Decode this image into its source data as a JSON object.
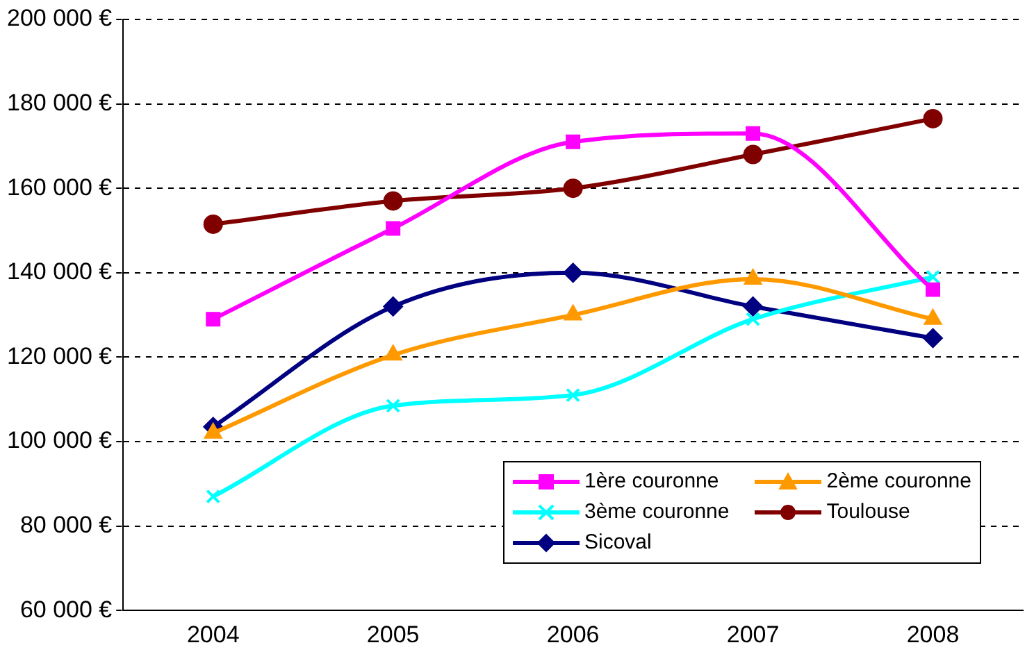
{
  "chart_data": {
    "type": "line",
    "categories": [
      "2004",
      "2005",
      "2006",
      "2007",
      "2008"
    ],
    "series": [
      {
        "name": "1ère couronne",
        "color": "#ff00ff",
        "marker": "square",
        "values": [
          129000,
          150500,
          171000,
          173000,
          136000
        ]
      },
      {
        "name": "2ème couronne",
        "color": "#ff9900",
        "marker": "triangle",
        "values": [
          102000,
          120500,
          130000,
          138500,
          129000
        ]
      },
      {
        "name": "3ème couronne",
        "color": "#00ffff",
        "marker": "cross",
        "values": [
          87000,
          108500,
          111000,
          129000,
          139000
        ]
      },
      {
        "name": "Toulouse",
        "color": "#800000",
        "marker": "circle",
        "values": [
          151500,
          157000,
          160000,
          168000,
          176500
        ]
      },
      {
        "name": "Sicoval",
        "color": "#000080",
        "marker": "diamond",
        "values": [
          103500,
          132000,
          140000,
          132000,
          124500
        ]
      }
    ],
    "ylim": [
      60000,
      200000
    ],
    "yticks": [
      {
        "value": 60000,
        "label": "60 000 €"
      },
      {
        "value": 80000,
        "label": "80 000 €"
      },
      {
        "value": 100000,
        "label": "100 000 €"
      },
      {
        "value": 120000,
        "label": "120 000 €"
      },
      {
        "value": 140000,
        "label": "140 000 €"
      },
      {
        "value": 160000,
        "label": "160 000 €"
      },
      {
        "value": 180000,
        "label": "180 000 €"
      },
      {
        "value": 200000,
        "label": "200 000 €"
      }
    ],
    "grid": "y",
    "legend": "bottom right",
    "line_style": "solid"
  }
}
